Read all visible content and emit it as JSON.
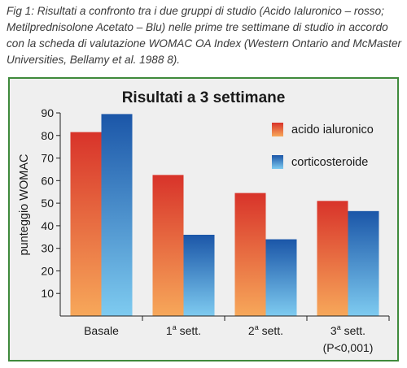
{
  "caption": "Fig 1:  Risultati a confronto tra i due gruppi di studio (Acido Ialuronico – rosso; Metilprednisolone Acetato – Blu) nelle prime tre settimane di studio in accordo con la scheda di valutazione WOMAC OA Index (Western Ontario and McMaster Universities, Bellamy et al. 1988 8).",
  "colors": {
    "frame": "#3f8a3c",
    "background": "#efefef",
    "series1_top": "#d8332a",
    "series1_bottom": "#f7a85a",
    "series2_top": "#1b56a8",
    "series2_bottom": "#7ecbf0"
  },
  "chart_data": {
    "type": "bar",
    "title": "Risultati a 3 settimane",
    "xlabel": "",
    "ylabel": "punteggio WOMAC",
    "ylim": [
      0,
      90
    ],
    "yticks": [
      10,
      20,
      30,
      40,
      50,
      60,
      70,
      80,
      90
    ],
    "grid": false,
    "legend_position": "top-right",
    "categories": [
      {
        "main": "Basale",
        "sup": "",
        "suffix": "",
        "note": ""
      },
      {
        "main": "1",
        "sup": "a",
        "suffix": " sett.",
        "note": ""
      },
      {
        "main": "2",
        "sup": "a",
        "suffix": " sett.",
        "note": ""
      },
      {
        "main": "3",
        "sup": "a",
        "suffix": " sett.",
        "note": "(P<0,001)"
      }
    ],
    "series": [
      {
        "name": "acido ialuronico",
        "values": [
          81.5,
          62.5,
          54.5,
          51
        ]
      },
      {
        "name": "corticosteroide",
        "values": [
          89.5,
          36,
          34,
          46.5
        ]
      }
    ]
  }
}
